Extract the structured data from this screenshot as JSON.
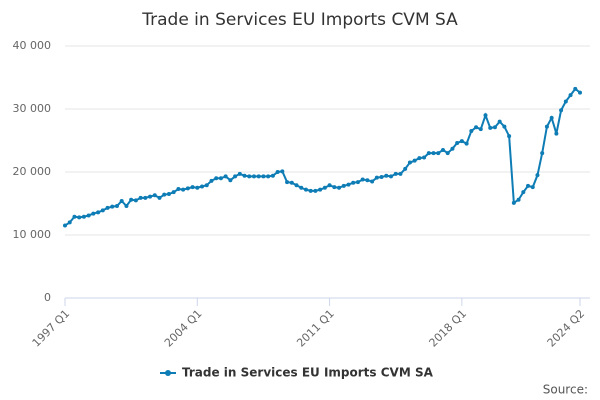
{
  "chart_data": {
    "type": "line",
    "title": "Trade in Services EU Imports CVM SA",
    "categories": [
      "1997 Q1",
      null,
      null,
      null,
      null,
      null,
      null,
      null,
      null,
      null,
      null,
      null,
      null,
      null,
      null,
      null,
      null,
      null,
      null,
      null,
      null,
      null,
      null,
      null,
      null,
      null,
      null,
      null,
      "2004 Q1",
      null,
      null,
      null,
      null,
      null,
      null,
      null,
      null,
      null,
      null,
      null,
      null,
      null,
      null,
      null,
      null,
      null,
      null,
      null,
      null,
      null,
      null,
      null,
      null,
      null,
      null,
      null,
      "2011 Q1",
      null,
      null,
      null,
      null,
      null,
      null,
      null,
      null,
      null,
      null,
      null,
      null,
      null,
      null,
      null,
      null,
      null,
      null,
      null,
      null,
      null,
      null,
      null,
      null,
      null,
      null,
      null,
      "2018 Q1",
      null,
      null,
      null,
      null,
      null,
      null,
      null,
      null,
      null,
      null,
      null,
      null,
      null,
      null,
      null,
      null,
      null,
      null,
      null,
      null,
      null,
      null,
      null,
      null,
      "2024 Q2"
    ],
    "series": [
      {
        "name": "Trade in Services EU Imports CVM SA",
        "color": "#0e7cb5",
        "values": [
          11500,
          12000,
          12900,
          12800,
          12900,
          13100,
          13400,
          13600,
          13900,
          14300,
          14500,
          14600,
          15400,
          14600,
          15600,
          15500,
          15900,
          15900,
          16100,
          16300,
          15900,
          16400,
          16500,
          16800,
          17300,
          17200,
          17400,
          17600,
          17500,
          17700,
          17900,
          18600,
          19000,
          19000,
          19300,
          18700,
          19300,
          19700,
          19400,
          19300,
          19300,
          19300,
          19300,
          19300,
          19400,
          20000,
          20100,
          18400,
          18300,
          17900,
          17500,
          17200,
          17000,
          17000,
          17200,
          17500,
          17900,
          17600,
          17500,
          17800,
          18000,
          18300,
          18400,
          18800,
          18700,
          18500,
          19100,
          19200,
          19400,
          19300,
          19700,
          19700,
          20500,
          21500,
          21800,
          22200,
          22300,
          23000,
          23000,
          23000,
          23500,
          23000,
          23700,
          24600,
          24900,
          24500,
          26500,
          27100,
          26800,
          29000,
          27000,
          27100,
          28000,
          27200,
          25700,
          15100,
          15600,
          16800,
          17800,
          17600,
          19500,
          23000,
          27200,
          28600,
          26100,
          29800,
          31200,
          32200,
          33200,
          32600
        ]
      }
    ],
    "ylim": [
      0,
      40000
    ],
    "yticks": [
      0,
      {
        "value": 10000,
        "label": "10 000"
      },
      {
        "value": 20000,
        "label": "20 000"
      },
      {
        "value": 30000,
        "label": "30 000"
      },
      {
        "value": 40000,
        "label": "40 000"
      }
    ],
    "grid": true,
    "legend": "bottom",
    "source": "Source:"
  }
}
